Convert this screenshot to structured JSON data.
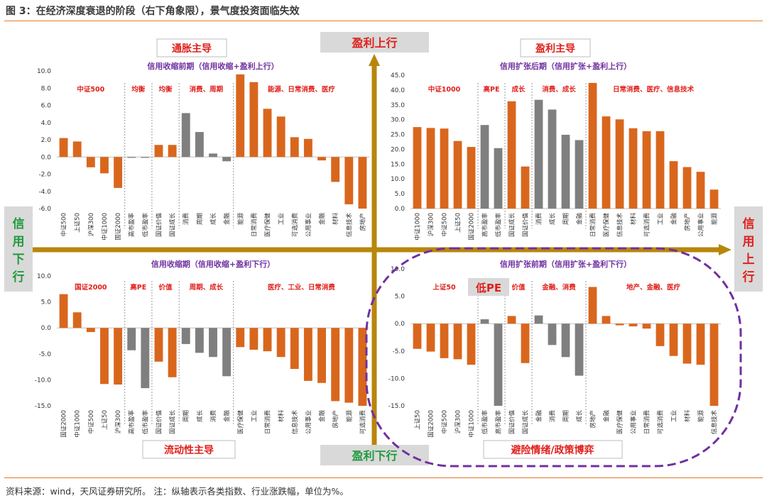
{
  "title": "图 3：在经济深度衰退的阶段（右下角象限），景气度投资面临失效",
  "source": "资料来源：wind，天风证券研究所。 注：纵轴表示各类指数、行业涨跌幅，单位为%。",
  "axes": {
    "top": "盈利上行",
    "bottom": "盈利下行",
    "left": [
      "信",
      "用",
      "下",
      "行"
    ],
    "right": [
      "信",
      "用",
      "上",
      "行"
    ]
  },
  "quadrant_labels": {
    "tl": "通胀主导",
    "tr": "盈利主导",
    "bl": "流动性主导",
    "br": "避险情绪/政策博弈"
  },
  "low_pe_note": "低PE",
  "colors": {
    "orange": "#d9661d",
    "gray": "#7f7f7f",
    "axis": "#b8860b",
    "purple": "#7030a0",
    "group_label": "#e0201b",
    "panel_title": "#7030a0",
    "green": "#1f9a3c"
  },
  "chart_data": [
    {
      "type": "bar",
      "title": "信用收缩前期（信用收缩+盈利上行）",
      "ylim": [
        -6,
        10
      ],
      "yticks": [
        "10.0",
        "8.0",
        "6.0",
        "4.0",
        "2.0",
        "0.0",
        "-2.0",
        "-4.0",
        "-6.0"
      ],
      "groups": [
        {
          "label": "中证500",
          "bars": [
            {
              "c": "中证500",
              "v": 2.2,
              "col": "orange"
            },
            {
              "c": "上证50",
              "v": 1.8,
              "col": "orange"
            },
            {
              "c": "沪深300",
              "v": -1.2,
              "col": "orange"
            },
            {
              "c": "中证1000",
              "v": -1.9,
              "col": "orange"
            },
            {
              "c": "国证2000",
              "v": -3.6,
              "col": "orange"
            }
          ]
        },
        {
          "label": "均衡",
          "bars": [
            {
              "c": "高市盈率",
              "v": -0.1,
              "col": "gray"
            },
            {
              "c": "低市盈率",
              "v": -0.1,
              "col": "gray"
            }
          ]
        },
        {
          "label": "均衡",
          "bars": [
            {
              "c": "国证价值",
              "v": 1.4,
              "col": "orange"
            },
            {
              "c": "国证成长",
              "v": 1.4,
              "col": "orange"
            }
          ]
        },
        {
          "label": "消费、周期",
          "bars": [
            {
              "c": "消费",
              "v": 5.1,
              "col": "gray"
            },
            {
              "c": "周期",
              "v": 2.9,
              "col": "gray"
            },
            {
              "c": "成长",
              "v": 0.4,
              "col": "gray"
            },
            {
              "c": "金融",
              "v": -0.5,
              "col": "gray"
            }
          ]
        },
        {
          "label": "能源、日常消费、医疗",
          "bars": [
            {
              "c": "能源",
              "v": 9.6,
              "col": "orange"
            },
            {
              "c": "日常消费",
              "v": 8.7,
              "col": "orange"
            },
            {
              "c": "医疗保健",
              "v": 5.6,
              "col": "orange"
            },
            {
              "c": "工业",
              "v": 4.7,
              "col": "orange"
            },
            {
              "c": "可选消费",
              "v": 2.3,
              "col": "orange"
            },
            {
              "c": "公用事业",
              "v": 2.1,
              "col": "orange"
            },
            {
              "c": "金融",
              "v": -0.4,
              "col": "orange"
            },
            {
              "c": "材料",
              "v": -2.9,
              "col": "orange"
            },
            {
              "c": "信息技术",
              "v": -5.5,
              "col": "orange"
            },
            {
              "c": "房地产",
              "v": -6.0,
              "col": "orange"
            }
          ]
        }
      ]
    },
    {
      "type": "bar",
      "title": "信用扩张后期（信用扩张+盈利上行）",
      "ylim": [
        0,
        45
      ],
      "yticks": [
        "45.0",
        "40.0",
        "35.0",
        "30.0",
        "25.0",
        "20.0",
        "15.0",
        "10.0",
        "5.0",
        "0.0"
      ],
      "groups": [
        {
          "label": "中证1000",
          "bars": [
            {
              "c": "中证1000",
              "v": 27.5,
              "col": "orange"
            },
            {
              "c": "沪深300",
              "v": 27.2,
              "col": "orange"
            },
            {
              "c": "中证500",
              "v": 27.0,
              "col": "orange"
            },
            {
              "c": "上证50",
              "v": 22.8,
              "col": "orange"
            },
            {
              "c": "国证2000",
              "v": 20.8,
              "col": "orange"
            }
          ]
        },
        {
          "label": "高PE",
          "bars": [
            {
              "c": "高市盈率",
              "v": 28.2,
              "col": "gray"
            },
            {
              "c": "低市盈率",
              "v": 20.4,
              "col": "gray"
            }
          ]
        },
        {
          "label": "成长",
          "bars": [
            {
              "c": "国证成长",
              "v": 36.2,
              "col": "orange"
            },
            {
              "c": "国证价值",
              "v": 14.2,
              "col": "orange"
            }
          ]
        },
        {
          "label": "消费、成长",
          "bars": [
            {
              "c": "消费",
              "v": 36.7,
              "col": "gray"
            },
            {
              "c": "成长",
              "v": 33.4,
              "col": "gray"
            },
            {
              "c": "周期",
              "v": 24.9,
              "col": "gray"
            },
            {
              "c": "金融",
              "v": 23.1,
              "col": "gray"
            }
          ]
        },
        {
          "label": "日常消费、医疗、信息技术",
          "bars": [
            {
              "c": "日常消费",
              "v": 42.4,
              "col": "orange"
            },
            {
              "c": "医疗保健",
              "v": 31.1,
              "col": "orange"
            },
            {
              "c": "信息技术",
              "v": 30.1,
              "col": "orange"
            },
            {
              "c": "材料",
              "v": 27.1,
              "col": "orange"
            },
            {
              "c": "可选消费",
              "v": 26.1,
              "col": "orange"
            },
            {
              "c": "工业",
              "v": 26.1,
              "col": "orange"
            },
            {
              "c": "金融",
              "v": 16.0,
              "col": "orange"
            },
            {
              "c": "房地产",
              "v": 14.0,
              "col": "orange"
            },
            {
              "c": "公用事业",
              "v": 12.4,
              "col": "orange"
            },
            {
              "c": "能源",
              "v": 6.4,
              "col": "orange"
            }
          ]
        }
      ]
    },
    {
      "type": "bar",
      "title": "信用收缩期（信用收缩+盈利下行）",
      "ylim": [
        -15,
        10
      ],
      "yticks": [
        "10.0",
        "5.0",
        "0.0",
        "-5.0",
        "-10.0",
        "-15.0"
      ],
      "groups": [
        {
          "label": "国证2000",
          "bars": [
            {
              "c": "国证2000",
              "v": 6.5,
              "col": "orange"
            },
            {
              "c": "中证1000",
              "v": 3.0,
              "col": "orange"
            },
            {
              "c": "中证500",
              "v": -0.8,
              "col": "orange"
            },
            {
              "c": "上证50",
              "v": -10.8,
              "col": "orange"
            },
            {
              "c": "沪深300",
              "v": -10.9,
              "col": "orange"
            }
          ]
        },
        {
          "label": "高PE",
          "bars": [
            {
              "c": "高市盈率",
              "v": -4.3,
              "col": "gray"
            },
            {
              "c": "低市盈率",
              "v": -11.6,
              "col": "gray"
            }
          ]
        },
        {
          "label": "价值",
          "bars": [
            {
              "c": "国证价值",
              "v": -6.5,
              "col": "orange"
            },
            {
              "c": "国证成长",
              "v": -9.5,
              "col": "orange"
            }
          ]
        },
        {
          "label": "周期、成长",
          "bars": [
            {
              "c": "周期",
              "v": -3.1,
              "col": "gray"
            },
            {
              "c": "成长",
              "v": -4.8,
              "col": "gray"
            },
            {
              "c": "消费",
              "v": -5.6,
              "col": "gray"
            },
            {
              "c": "金融",
              "v": -9.3,
              "col": "gray"
            }
          ]
        },
        {
          "label": "医疗、工业、日常消费",
          "bars": [
            {
              "c": "医疗保健",
              "v": -3.7,
              "col": "orange"
            },
            {
              "c": "工业",
              "v": -4.2,
              "col": "orange"
            },
            {
              "c": "日常消费",
              "v": -4.5,
              "col": "orange"
            },
            {
              "c": "材料",
              "v": -5.6,
              "col": "orange"
            },
            {
              "c": "信息技术",
              "v": -7.9,
              "col": "orange"
            },
            {
              "c": "公用事业",
              "v": -10.2,
              "col": "orange"
            },
            {
              "c": "金融",
              "v": -10.6,
              "col": "orange"
            },
            {
              "c": "房地产",
              "v": -14.1,
              "col": "orange"
            },
            {
              "c": "能源",
              "v": -14.4,
              "col": "orange"
            },
            {
              "c": "可选消费",
              "v": -15.0,
              "col": "orange"
            }
          ]
        }
      ]
    },
    {
      "type": "bar",
      "title": "信用扩张前期（信用扩张+盈利下行）",
      "ylim": [
        -15,
        10
      ],
      "yticks": [
        "10.0",
        "5.0",
        "0.0",
        "-5.0",
        "-10.0",
        "-15.0"
      ],
      "groups": [
        {
          "label": "上证50",
          "bars": [
            {
              "c": "上证50",
              "v": -4.6,
              "col": "orange"
            },
            {
              "c": "国证2000",
              "v": -5.1,
              "col": "orange"
            },
            {
              "c": "中证500",
              "v": -6.3,
              "col": "orange"
            },
            {
              "c": "沪深300",
              "v": -6.5,
              "col": "orange"
            },
            {
              "c": "中证1000",
              "v": -7.5,
              "col": "orange"
            }
          ]
        },
        {
          "label": "",
          "bars": [
            {
              "c": "低市盈率",
              "v": 0.8,
              "col": "gray"
            },
            {
              "c": "高市盈率",
              "v": -15.0,
              "col": "gray"
            }
          ]
        },
        {
          "label": "价值",
          "bars": [
            {
              "c": "国证价值",
              "v": 1.4,
              "col": "orange"
            },
            {
              "c": "国证成长",
              "v": -7.2,
              "col": "orange"
            }
          ]
        },
        {
          "label": "金融、消费",
          "bars": [
            {
              "c": "金融",
              "v": 1.5,
              "col": "gray"
            },
            {
              "c": "消费",
              "v": -3.9,
              "col": "gray"
            },
            {
              "c": "周期",
              "v": -6.1,
              "col": "gray"
            },
            {
              "c": "成长",
              "v": -9.5,
              "col": "gray"
            }
          ]
        },
        {
          "label": "地产、金融、医疗",
          "bars": [
            {
              "c": "房地产",
              "v": 6.7,
              "col": "orange"
            },
            {
              "c": "金融",
              "v": 1.4,
              "col": "orange"
            },
            {
              "c": "医疗保健",
              "v": -0.3,
              "col": "orange"
            },
            {
              "c": "公用事业",
              "v": -0.5,
              "col": "orange"
            },
            {
              "c": "日常消费",
              "v": -0.9,
              "col": "orange"
            },
            {
              "c": "可选消费",
              "v": -4.1,
              "col": "orange"
            },
            {
              "c": "工业",
              "v": -5.9,
              "col": "orange"
            },
            {
              "c": "材料",
              "v": -7.3,
              "col": "orange"
            },
            {
              "c": "能源",
              "v": -7.5,
              "col": "orange"
            },
            {
              "c": "信息技术",
              "v": -15.0,
              "col": "orange"
            }
          ]
        }
      ]
    }
  ]
}
